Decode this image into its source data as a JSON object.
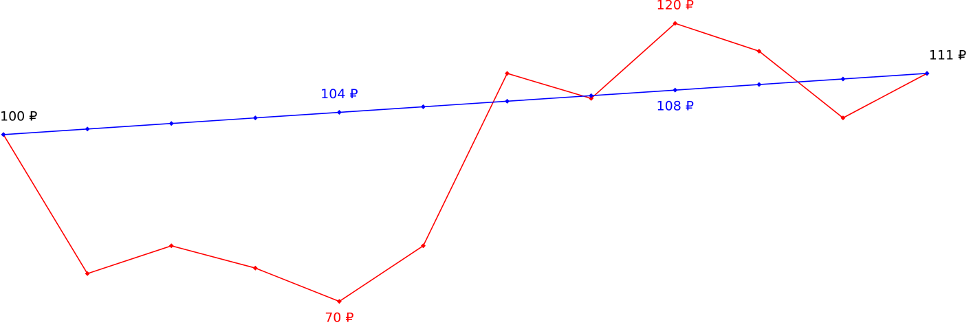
{
  "chart_data": {
    "type": "line",
    "categories": [
      null,
      null,
      null,
      null,
      null,
      null,
      null,
      null,
      null,
      null,
      null,
      null
    ],
    "series": [
      {
        "name": null,
        "color": "#ff0000",
        "values": [
          100,
          75,
          80,
          76,
          70,
          80,
          111,
          106.5,
          120,
          115,
          103,
          111
        ],
        "value_labels": [
          null,
          null,
          null,
          null,
          "70 ₽",
          null,
          null,
          null,
          "120 ₽",
          null,
          null,
          null
        ]
      },
      {
        "name": null,
        "color": "#0000ff",
        "values": [
          100,
          101,
          102,
          103,
          104,
          105,
          106,
          107,
          108,
          109,
          110,
          111
        ],
        "value_labels": [
          "100 ₽",
          null,
          null,
          null,
          "104 ₽",
          null,
          null,
          null,
          "108 ₽",
          null,
          null,
          "111 ₽"
        ]
      }
    ],
    "end_label_color": "#000000",
    "ylim": [
      65.4,
      124.2
    ],
    "grid": false
  }
}
